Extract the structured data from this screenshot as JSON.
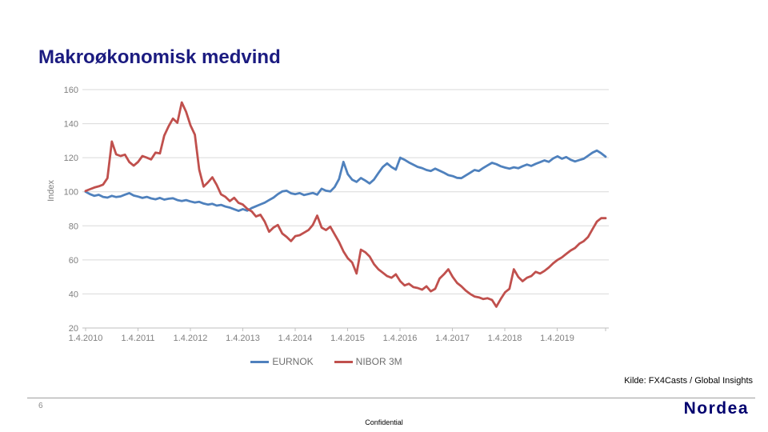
{
  "slide": {
    "title": "Makroøkonomisk medvind",
    "source": "Kilde: FX4Casts / Global Insights",
    "page_number": "6",
    "confidential": "Confidential",
    "logo_text": "Nordea"
  },
  "colors": {
    "title": "#1b1b80",
    "logo": "#00006e",
    "eurnok_line": "#4f81bd",
    "nibor_line": "#c0504d",
    "gridline": "#d9d9d9",
    "axis_line": "#bfbfbf",
    "axis_text": "#7f7f7f"
  },
  "chart_data": {
    "type": "line",
    "title": "",
    "xlabel": "",
    "ylabel": "Index",
    "ylim": [
      20,
      160
    ],
    "yticks": [
      160,
      140,
      120,
      100,
      80,
      60,
      40,
      20
    ],
    "xtick_labels": [
      "1.4.2010",
      "1.4.2011",
      "1.4.2012",
      "1.4.2013",
      "1.4.2014",
      "1.4.2015",
      "1.4.2016",
      "1.4.2017",
      "1.4.2018",
      "1.4.2019"
    ],
    "x_unit": "monthly samples, Apr 2010 - Mar 2020",
    "grid": "horizontal",
    "legend_position": "bottom",
    "series": [
      {
        "name": "EURNOK",
        "color": "#4f81bd",
        "values": [
          100.0,
          98.6,
          97.6,
          98.2,
          97.0,
          96.6,
          97.6,
          96.9,
          97.3,
          98.3,
          99.2,
          97.8,
          97.2,
          96.4,
          97.0,
          96.1,
          95.6,
          96.4,
          95.4,
          95.9,
          96.2,
          95.1,
          94.6,
          95.1,
          94.3,
          93.7,
          94.1,
          93.1,
          92.5,
          92.9,
          91.9,
          92.3,
          91.3,
          90.7,
          89.7,
          88.8,
          89.8,
          88.9,
          90.4,
          91.5,
          92.6,
          93.6,
          95.1,
          96.6,
          98.6,
          100.2,
          100.6,
          99.1,
          98.6,
          99.2,
          98.1,
          98.7,
          99.3,
          98.3,
          101.8,
          100.6,
          100.2,
          102.8,
          107.5,
          117.6,
          110.4,
          107.1,
          105.8,
          108.1,
          106.6,
          104.9,
          107.2,
          111.0,
          114.5,
          116.7,
          114.5,
          113.0,
          120.0,
          118.8,
          117.2,
          115.9,
          114.6,
          113.9,
          112.8,
          112.2,
          113.6,
          112.4,
          111.2,
          109.8,
          109.2,
          108.2,
          108.0,
          109.6,
          111.2,
          112.8,
          112.2,
          114.0,
          115.5,
          117.0,
          116.2,
          115.0,
          114.2,
          113.6,
          114.4,
          113.8,
          115.0,
          116.0,
          115.2,
          116.4,
          117.4,
          118.4,
          117.6,
          119.6,
          120.8,
          119.4,
          120.4,
          118.8,
          117.8,
          118.6,
          119.4,
          121.2,
          123.0,
          124.2,
          122.6,
          120.6
        ]
      },
      {
        "name": "NIBOR 3M",
        "color": "#c0504d",
        "values": [
          100.5,
          101.5,
          102.5,
          103.2,
          104.2,
          108.0,
          129.5,
          122.0,
          121.0,
          121.8,
          117.5,
          115.3,
          117.5,
          121.0,
          120.0,
          119.0,
          123.0,
          122.5,
          133.0,
          138.5,
          143.0,
          140.5,
          152.5,
          147.0,
          139.0,
          133.5,
          113.0,
          103.0,
          105.5,
          108.5,
          104.0,
          98.5,
          97.0,
          94.5,
          96.5,
          93.5,
          92.5,
          90.0,
          88.5,
          85.5,
          86.5,
          82.5,
          76.5,
          79.0,
          80.5,
          75.5,
          73.5,
          71.0,
          74.0,
          74.5,
          76.0,
          77.5,
          80.5,
          86.0,
          79.0,
          77.5,
          79.5,
          75.0,
          70.5,
          65.0,
          61.0,
          58.5,
          52.0,
          66.0,
          64.5,
          62.0,
          57.5,
          54.5,
          52.5,
          50.5,
          49.5,
          51.5,
          47.5,
          45.0,
          46.0,
          44.0,
          43.5,
          42.5,
          44.5,
          41.5,
          43.0,
          49.0,
          51.5,
          54.5,
          50.0,
          46.5,
          44.5,
          42.0,
          40.0,
          38.5,
          38.0,
          37.0,
          37.5,
          36.5,
          32.5,
          37.0,
          41.0,
          43.0,
          54.5,
          50.0,
          47.5,
          49.5,
          50.5,
          53.0,
          52.0,
          53.5,
          55.5,
          58.0,
          60.0,
          61.5,
          63.5,
          65.5,
          67.0,
          69.5,
          71.0,
          73.5,
          78.0,
          82.5,
          84.5,
          84.5
        ]
      }
    ]
  }
}
